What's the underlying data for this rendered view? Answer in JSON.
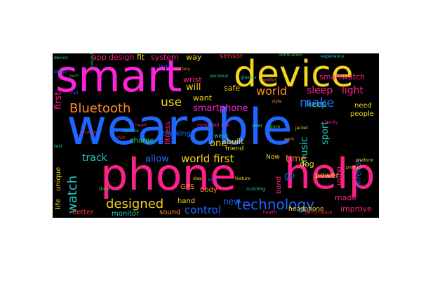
{
  "colors": {
    "background": "#000000",
    "magenta": "#ff22dd",
    "pink": "#ff1f88",
    "blue": "#1f66ff",
    "yellow": "#f3d51c",
    "orange": "#ff8a2a",
    "green": "#2ecc3c",
    "cyan": "#24c8c0",
    "red": "#ff3030"
  },
  "words": [
    {
      "text": "wearable",
      "color": "blue"
    },
    {
      "text": "smart",
      "color": "magenta"
    },
    {
      "text": "phone",
      "color": "pink"
    },
    {
      "text": "device",
      "color": "yellow"
    },
    {
      "text": "help",
      "color": "pink"
    },
    {
      "text": "Bluetooth",
      "color": "orange"
    },
    {
      "text": "designed",
      "color": "yellow"
    },
    {
      "text": "technology",
      "color": "blue"
    },
    {
      "text": "world first",
      "color": "yellow"
    },
    {
      "text": "world",
      "color": "orange"
    },
    {
      "text": "make",
      "color": "blue"
    },
    {
      "text": "use",
      "color": "yellow"
    },
    {
      "text": "watch",
      "color": "cyan"
    },
    {
      "text": "control",
      "color": "blue"
    },
    {
      "text": "sleep",
      "color": "pink"
    },
    {
      "text": "light",
      "color": "pink"
    },
    {
      "text": "smartphone",
      "color": "magenta"
    },
    {
      "text": "track",
      "color": "cyan"
    },
    {
      "text": "allow",
      "color": "blue"
    },
    {
      "text": "music",
      "color": "cyan"
    },
    {
      "text": "sport",
      "color": "cyan"
    },
    {
      "text": "keep",
      "color": "cyan"
    },
    {
      "text": "time",
      "color": "orange"
    },
    {
      "text": "first",
      "color": "pink"
    },
    {
      "text": "new",
      "color": "blue"
    },
    {
      "text": "one",
      "color": "yellow"
    },
    {
      "text": "will",
      "color": "yellow"
    },
    {
      "text": "app",
      "color": "pink"
    },
    {
      "text": "design",
      "color": "pink"
    },
    {
      "text": "fit",
      "color": "yellow"
    },
    {
      "text": "system",
      "color": "pink"
    },
    {
      "text": "way",
      "color": "yellow"
    },
    {
      "text": "sensor",
      "color": "red"
    },
    {
      "text": "smartwatch",
      "color": "pink"
    },
    {
      "text": "fitness",
      "color": "pink"
    },
    {
      "text": "built",
      "color": "yellow"
    },
    {
      "text": "wrist",
      "color": "pink"
    },
    {
      "text": "want",
      "color": "yellow"
    },
    {
      "text": "safe",
      "color": "yellow"
    },
    {
      "text": "unique",
      "color": "yellow"
    },
    {
      "text": "life",
      "color": "yellow"
    },
    {
      "text": "band",
      "color": "pink"
    },
    {
      "text": "dog",
      "color": "yellow"
    },
    {
      "text": "go",
      "color": "blue"
    },
    {
      "text": "power",
      "color": "yellow"
    },
    {
      "text": "made",
      "color": "pink"
    },
    {
      "text": "improve",
      "color": "pink"
    },
    {
      "text": "using",
      "color": "pink"
    },
    {
      "text": "monitor",
      "color": "cyan"
    },
    {
      "text": "sound",
      "color": "orange"
    },
    {
      "text": "hand",
      "color": "yellow"
    },
    {
      "text": "body",
      "color": "orange"
    },
    {
      "text": "charge",
      "color": "green"
    },
    {
      "text": "better",
      "color": "red"
    },
    {
      "text": "headphone",
      "color": "yellow"
    },
    {
      "text": "friend",
      "color": "yellow"
    },
    {
      "text": "people",
      "color": "yellow"
    },
    {
      "text": "wireless",
      "color": "blue"
    },
    {
      "text": "need",
      "color": "yellow"
    },
    {
      "text": "GPS",
      "color": "orange"
    },
    {
      "text": "tracking",
      "color": "blue"
    },
    {
      "text": "Now",
      "color": "yellow"
    },
    {
      "text": "running",
      "color": "cyan"
    },
    {
      "text": "wear",
      "color": "cyan"
    },
    {
      "text": "user",
      "color": "cyan"
    },
    {
      "text": "health",
      "color": "pink"
    },
    {
      "text": "style",
      "color": "orange"
    },
    {
      "text": "camera",
      "color": "cyan"
    },
    {
      "text": "data",
      "color": "green"
    },
    {
      "text": "heart",
      "color": "pink"
    },
    {
      "text": "rate",
      "color": "pink"
    },
    {
      "text": "step",
      "color": "yellow"
    },
    {
      "text": "performance",
      "color": "red"
    },
    {
      "text": "experience",
      "color": "cyan"
    },
    {
      "text": "comfort",
      "color": "orange"
    },
    {
      "text": "glove",
      "color": "green"
    },
    {
      "text": "battery",
      "color": "orange"
    },
    {
      "text": "stylish",
      "color": "blue"
    },
    {
      "text": "device",
      "color": "cyan"
    },
    {
      "text": "connected",
      "color": "pink"
    },
    {
      "text": "feature",
      "color": "yellow"
    },
    {
      "text": "product",
      "color": "yellow"
    },
    {
      "text": "home",
      "color": "blue"
    },
    {
      "text": "family",
      "color": "pink"
    },
    {
      "text": "jacket",
      "color": "yellow"
    },
    {
      "text": "shirt",
      "color": "red"
    },
    {
      "text": "notification",
      "color": "green"
    },
    {
      "text": "personal",
      "color": "cyan"
    },
    {
      "text": "platform",
      "color": "yellow"
    },
    {
      "text": "location",
      "color": "red"
    },
    {
      "text": "glasses",
      "color": "cyan"
    },
    {
      "text": "tech",
      "color": "green"
    },
    {
      "text": "bike",
      "color": "blue"
    },
    {
      "text": "work",
      "color": "orange"
    },
    {
      "text": "text",
      "color": "cyan"
    },
    {
      "text": "call",
      "color": "blue"
    },
    {
      "text": "revolutionary",
      "color": "green"
    }
  ]
}
